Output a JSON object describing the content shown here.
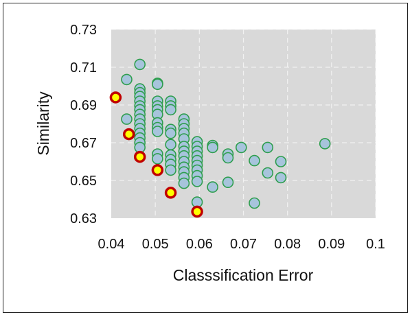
{
  "chart_data": {
    "type": "scatter",
    "title": "",
    "xlabel": "Classsification Error",
    "ylabel": "Similarity",
    "xlim": [
      0.04,
      0.1
    ],
    "ylim": [
      0.63,
      0.73
    ],
    "xticks": [
      0.04,
      0.05,
      0.06,
      0.07,
      0.08,
      0.09,
      0.1
    ],
    "xtick_labels": [
      "0.04",
      "0.05",
      "0.06",
      "0.07",
      "0.08",
      "0.09",
      "0.1"
    ],
    "yticks": [
      0.63,
      0.65,
      0.67,
      0.69,
      0.71,
      0.73
    ],
    "ytick_labels": [
      "0.63",
      "0.65",
      "0.67",
      "0.69",
      "0.71",
      "0.73"
    ],
    "grid": true,
    "legend": "none",
    "plot_background": "#d9d9d9",
    "series": [
      {
        "marker_fill": "#a7c4dc",
        "marker_edge": "#2e9e4e",
        "points": [
          [
            0.0435,
            0.7035
          ],
          [
            0.0435,
            0.6825
          ],
          [
            0.0465,
            0.7115
          ],
          [
            0.0465,
            0.6985
          ],
          [
            0.0465,
            0.6965
          ],
          [
            0.0465,
            0.6945
          ],
          [
            0.0465,
            0.692
          ],
          [
            0.0465,
            0.6895
          ],
          [
            0.0465,
            0.6875
          ],
          [
            0.0465,
            0.685
          ],
          [
            0.0465,
            0.6825
          ],
          [
            0.0465,
            0.68
          ],
          [
            0.0465,
            0.6775
          ],
          [
            0.0465,
            0.675
          ],
          [
            0.0465,
            0.6725
          ],
          [
            0.0465,
            0.67
          ],
          [
            0.0465,
            0.6675
          ],
          [
            0.0505,
            0.7015
          ],
          [
            0.0505,
            0.701
          ],
          [
            0.0505,
            0.692
          ],
          [
            0.0505,
            0.6895
          ],
          [
            0.0505,
            0.6875
          ],
          [
            0.0505,
            0.685
          ],
          [
            0.0505,
            0.6805
          ],
          [
            0.0505,
            0.678
          ],
          [
            0.0505,
            0.676
          ],
          [
            0.0505,
            0.664
          ],
          [
            0.0505,
            0.6615
          ],
          [
            0.0535,
            0.692
          ],
          [
            0.0535,
            0.6895
          ],
          [
            0.0535,
            0.6875
          ],
          [
            0.0535,
            0.677
          ],
          [
            0.0535,
            0.675
          ],
          [
            0.0535,
            0.669
          ],
          [
            0.0535,
            0.6635
          ],
          [
            0.0535,
            0.661
          ],
          [
            0.0535,
            0.6585
          ],
          [
            0.0535,
            0.6555
          ],
          [
            0.0565,
            0.6825
          ],
          [
            0.0565,
            0.68
          ],
          [
            0.0565,
            0.6775
          ],
          [
            0.0565,
            0.675
          ],
          [
            0.0565,
            0.672
          ],
          [
            0.0565,
            0.668
          ],
          [
            0.0565,
            0.6655
          ],
          [
            0.0565,
            0.663
          ],
          [
            0.0565,
            0.66
          ],
          [
            0.0565,
            0.657
          ],
          [
            0.0565,
            0.6545
          ],
          [
            0.0565,
            0.6515
          ],
          [
            0.0565,
            0.6485
          ],
          [
            0.0595,
            0.6705
          ],
          [
            0.0595,
            0.668
          ],
          [
            0.0595,
            0.6655
          ],
          [
            0.0595,
            0.663
          ],
          [
            0.0595,
            0.6605
          ],
          [
            0.0595,
            0.658
          ],
          [
            0.0595,
            0.6555
          ],
          [
            0.0595,
            0.6525
          ],
          [
            0.0595,
            0.6495
          ],
          [
            0.0595,
            0.6385
          ],
          [
            0.063,
            0.6685
          ],
          [
            0.063,
            0.6675
          ],
          [
            0.063,
            0.6465
          ],
          [
            0.0665,
            0.664
          ],
          [
            0.0665,
            0.662
          ],
          [
            0.0665,
            0.649
          ],
          [
            0.0695,
            0.6675
          ],
          [
            0.0725,
            0.6605
          ],
          [
            0.0725,
            0.638
          ],
          [
            0.0755,
            0.6675
          ],
          [
            0.0755,
            0.654
          ],
          [
            0.0785,
            0.66
          ],
          [
            0.0785,
            0.6515
          ],
          [
            0.0885,
            0.6695
          ]
        ]
      },
      {
        "marker_fill": "#ffff00",
        "marker_edge": "#c00000",
        "points": [
          [
            0.041,
            0.694
          ],
          [
            0.044,
            0.6745
          ],
          [
            0.0465,
            0.6625
          ],
          [
            0.0505,
            0.6555
          ],
          [
            0.0535,
            0.6435
          ],
          [
            0.0595,
            0.6335
          ]
        ]
      }
    ]
  }
}
